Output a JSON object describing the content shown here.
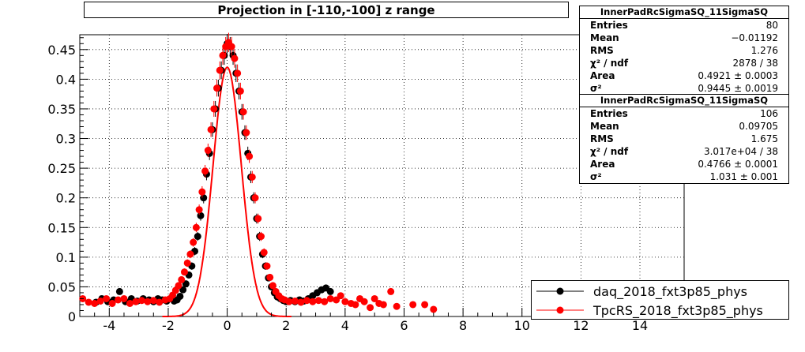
{
  "chart_data": {
    "type": "scatter",
    "title": "Projection in [-110,-100] z range",
    "xlim": [
      -5,
      15.5
    ],
    "ylim": [
      0,
      0.475
    ],
    "x_ticks": [
      -4,
      -2,
      0,
      2,
      4,
      6,
      8,
      10,
      12,
      14
    ],
    "y_ticks": [
      0,
      0.05,
      0.1,
      0.15,
      0.2,
      0.25,
      0.3,
      0.35,
      0.4,
      0.45
    ],
    "grid": true,
    "legend_position": "bottom-right",
    "series": [
      {
        "name": "daq_2018_fxt3p85_phys",
        "color": "#000000",
        "points": [
          [
            -4.45,
            0.024
          ],
          [
            -4.25,
            0.03
          ],
          [
            -4.05,
            0.025
          ],
          [
            -3.85,
            0.028
          ],
          [
            -3.65,
            0.042
          ],
          [
            -3.45,
            0.025
          ],
          [
            -3.25,
            0.03
          ],
          [
            -3.05,
            0.026
          ],
          [
            -2.85,
            0.03
          ],
          [
            -2.65,
            0.028
          ],
          [
            -2.5,
            0.025
          ],
          [
            -2.35,
            0.03
          ],
          [
            -2.2,
            0.028
          ],
          [
            -2.05,
            0.026
          ],
          [
            -1.9,
            0.03
          ],
          [
            -1.8,
            0.026
          ],
          [
            -1.7,
            0.028
          ],
          [
            -1.6,
            0.034
          ],
          [
            -1.5,
            0.045
          ],
          [
            -1.4,
            0.055
          ],
          [
            -1.3,
            0.07
          ],
          [
            -1.2,
            0.085
          ],
          [
            -1.1,
            0.11
          ],
          [
            -1.0,
            0.135
          ],
          [
            -0.9,
            0.17
          ],
          [
            -0.8,
            0.2
          ],
          [
            -0.7,
            0.24
          ],
          [
            -0.6,
            0.275
          ],
          [
            -0.5,
            0.315
          ],
          [
            -0.4,
            0.35
          ],
          [
            -0.3,
            0.385
          ],
          [
            -0.2,
            0.415
          ],
          [
            -0.1,
            0.44
          ],
          [
            0,
            0.46
          ],
          [
            0.1,
            0.455
          ],
          [
            0.2,
            0.44
          ],
          [
            0.3,
            0.41
          ],
          [
            0.4,
            0.38
          ],
          [
            0.5,
            0.345
          ],
          [
            0.6,
            0.31
          ],
          [
            0.7,
            0.275
          ],
          [
            0.8,
            0.235
          ],
          [
            0.9,
            0.2
          ],
          [
            1.0,
            0.165
          ],
          [
            1.1,
            0.135
          ],
          [
            1.2,
            0.105
          ],
          [
            1.3,
            0.085
          ],
          [
            1.4,
            0.065
          ],
          [
            1.5,
            0.05
          ],
          [
            1.6,
            0.04
          ],
          [
            1.7,
            0.033
          ],
          [
            1.8,
            0.03
          ],
          [
            1.9,
            0.027
          ],
          [
            2.0,
            0.025
          ],
          [
            2.15,
            0.027
          ],
          [
            2.3,
            0.025
          ],
          [
            2.45,
            0.028
          ],
          [
            2.6,
            0.026
          ],
          [
            2.75,
            0.03
          ],
          [
            2.9,
            0.035
          ],
          [
            3.05,
            0.04
          ],
          [
            3.2,
            0.045
          ],
          [
            3.35,
            0.048
          ],
          [
            3.5,
            0.042
          ]
        ]
      },
      {
        "name": "TpcRS_2018_fxt3p85_phys",
        "color": "#ff0000",
        "points": [
          [
            -4.9,
            0.03
          ],
          [
            -4.7,
            0.024
          ],
          [
            -4.5,
            0.022
          ],
          [
            -4.3,
            0.026
          ],
          [
            -4.1,
            0.03
          ],
          [
            -3.9,
            0.022
          ],
          [
            -3.7,
            0.028
          ],
          [
            -3.5,
            0.03
          ],
          [
            -3.3,
            0.022
          ],
          [
            -3.1,
            0.025
          ],
          [
            -2.9,
            0.027
          ],
          [
            -2.7,
            0.025
          ],
          [
            -2.5,
            0.027
          ],
          [
            -2.3,
            0.024
          ],
          [
            -2.1,
            0.028
          ],
          [
            -1.95,
            0.03
          ],
          [
            -1.85,
            0.036
          ],
          [
            -1.75,
            0.044
          ],
          [
            -1.65,
            0.052
          ],
          [
            -1.55,
            0.062
          ],
          [
            -1.45,
            0.075
          ],
          [
            -1.35,
            0.09
          ],
          [
            -1.25,
            0.105
          ],
          [
            -1.15,
            0.125
          ],
          [
            -1.05,
            0.15
          ],
          [
            -0.95,
            0.18
          ],
          [
            -0.85,
            0.21
          ],
          [
            -0.75,
            0.245
          ],
          [
            -0.65,
            0.28
          ],
          [
            -0.55,
            0.315
          ],
          [
            -0.45,
            0.35
          ],
          [
            -0.35,
            0.385
          ],
          [
            -0.25,
            0.415
          ],
          [
            -0.15,
            0.44
          ],
          [
            -0.05,
            0.455
          ],
          [
            0.05,
            0.462
          ],
          [
            0.15,
            0.455
          ],
          [
            0.25,
            0.435
          ],
          [
            0.35,
            0.41
          ],
          [
            0.45,
            0.38
          ],
          [
            0.55,
            0.345
          ],
          [
            0.65,
            0.31
          ],
          [
            0.75,
            0.27
          ],
          [
            0.85,
            0.235
          ],
          [
            0.95,
            0.2
          ],
          [
            1.05,
            0.165
          ],
          [
            1.15,
            0.135
          ],
          [
            1.25,
            0.108
          ],
          [
            1.35,
            0.085
          ],
          [
            1.45,
            0.066
          ],
          [
            1.55,
            0.052
          ],
          [
            1.65,
            0.042
          ],
          [
            1.75,
            0.035
          ],
          [
            1.85,
            0.03
          ],
          [
            1.95,
            0.028
          ],
          [
            2.1,
            0.025
          ],
          [
            2.3,
            0.026
          ],
          [
            2.5,
            0.024
          ],
          [
            2.7,
            0.027
          ],
          [
            2.9,
            0.025
          ],
          [
            3.1,
            0.027
          ],
          [
            3.3,
            0.025
          ],
          [
            3.5,
            0.03
          ],
          [
            3.7,
            0.028
          ],
          [
            3.85,
            0.035
          ],
          [
            4.0,
            0.025
          ],
          [
            4.2,
            0.022
          ],
          [
            4.35,
            0.02
          ],
          [
            4.5,
            0.03
          ],
          [
            4.65,
            0.025
          ],
          [
            4.85,
            0.015
          ],
          [
            5.0,
            0.03
          ],
          [
            5.15,
            0.022
          ],
          [
            5.3,
            0.02
          ],
          [
            5.55,
            0.042
          ],
          [
            5.75,
            0.017
          ],
          [
            6.3,
            0.02
          ],
          [
            6.7,
            0.02
          ],
          [
            7.0,
            0.012
          ]
        ]
      }
    ],
    "stats": [
      {
        "title": "InnerPadRcSigmaSQ_11SigmaSQ",
        "rows": [
          {
            "label": "Entries",
            "value": "80"
          },
          {
            "label": "Mean",
            "value": "−0.01192"
          },
          {
            "label": "RMS",
            "value": "1.276"
          },
          {
            "label": "χ² / ndf",
            "value": "2878 / 38"
          },
          {
            "label": "Area",
            "value": "0.4921 ± 0.0003"
          },
          {
            "label": "σ²",
            "value": "0.9445 ± 0.0019"
          }
        ]
      },
      {
        "title": "InnerPadRcSigmaSQ_11SigmaSQ",
        "rows": [
          {
            "label": "Entries",
            "value": "106"
          },
          {
            "label": "Mean",
            "value": "0.09705"
          },
          {
            "label": "RMS",
            "value": "1.675"
          },
          {
            "label": "χ² / ndf",
            "value": "3.017e+04 / 38"
          },
          {
            "label": "Area",
            "value": "0.4766 ± 0.0001"
          },
          {
            "label": "σ²",
            "value": "1.031 ± 0.001"
          }
        ]
      }
    ]
  }
}
